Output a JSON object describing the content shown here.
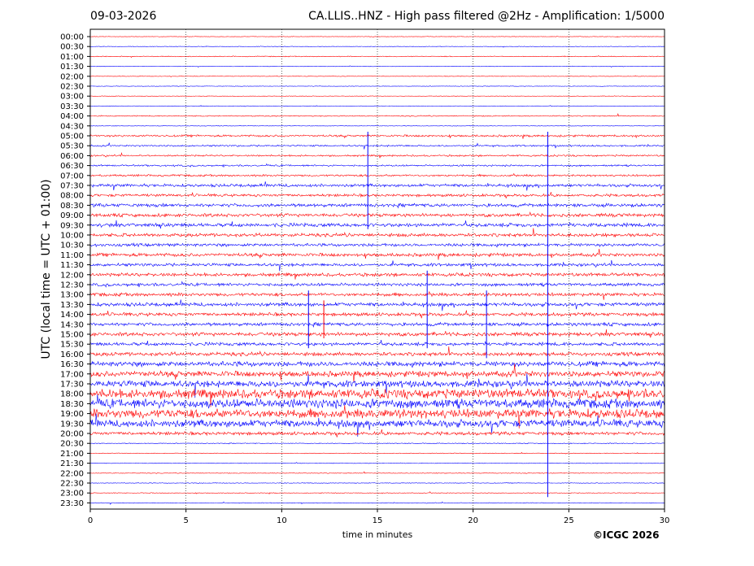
{
  "header": {
    "date": "09-03-2026",
    "title": "CA.LLIS..HNZ - High pass filtered @2Hz - Amplification: 1/5000"
  },
  "footer": {
    "copyright": "©ICGC 2026"
  },
  "colors": {
    "red_trace": "#ff0000",
    "blue_trace": "#0000ff",
    "axis": "#000000"
  },
  "chart_data": {
    "type": "line",
    "title": "CA.LLIS..HNZ - High pass filtered @2Hz - Amplification: 1/5000",
    "xlabel": "time in minutes",
    "ylabel": "UTC (local time = UTC + 01:00)",
    "xlim": [
      0,
      30
    ],
    "x_ticks": [
      0,
      5,
      10,
      15,
      20,
      25,
      30
    ],
    "y_ticks": [
      "00:00",
      "00:30",
      "01:00",
      "01:30",
      "02:00",
      "02:30",
      "03:00",
      "03:30",
      "04:00",
      "04:30",
      "05:00",
      "05:30",
      "06:00",
      "06:30",
      "07:00",
      "07:30",
      "08:00",
      "08:30",
      "09:00",
      "09:30",
      "10:00",
      "10:30",
      "11:00",
      "11:30",
      "12:00",
      "12:30",
      "13:00",
      "13:30",
      "14:00",
      "14:30",
      "15:00",
      "15:30",
      "16:00",
      "16:30",
      "17:00",
      "17:30",
      "18:00",
      "18:30",
      "19:00",
      "19:30",
      "20:00",
      "20:30",
      "21:00",
      "21:30",
      "22:00",
      "22:30",
      "23:00",
      "23:30"
    ],
    "grid": "vertical dotted lines at 5-minute intervals",
    "trace_colors": "alternating red and blue per half-hour row",
    "noise_level_by_row": [
      0.3,
      0.3,
      0.5,
      0.3,
      0.3,
      0.3,
      0.3,
      0.3,
      0.6,
      0.3,
      1.2,
      1.0,
      1.0,
      1.0,
      1.2,
      1.8,
      1.6,
      2.0,
      2.0,
      2.2,
      2.0,
      1.8,
      2.0,
      1.8,
      2.0,
      1.8,
      2.0,
      2.2,
      2.0,
      2.0,
      2.2,
      2.0,
      2.2,
      3.0,
      3.4,
      4.0,
      5.5,
      5.5,
      5.5,
      4.5,
      2.0,
      0.5,
      0.4,
      0.4,
      0.4,
      0.4,
      0.4,
      0.4
    ]
  }
}
